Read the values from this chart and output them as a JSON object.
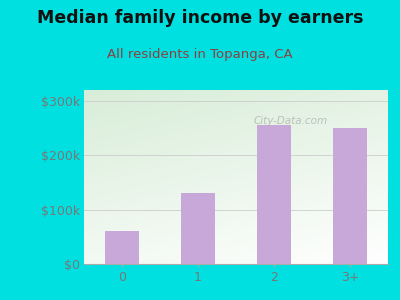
{
  "categories": [
    "0",
    "1",
    "2",
    "3+"
  ],
  "values": [
    60000,
    130000,
    255000,
    250000
  ],
  "bar_color": "#c8a8d8",
  "title": "Median family income by earners",
  "subtitle": "All residents in Topanga, CA",
  "ylabel_ticks": [
    0,
    100000,
    200000,
    300000
  ],
  "ylabel_labels": [
    "$0",
    "$100k",
    "$200k",
    "$300k"
  ],
  "ylim": [
    0,
    320000
  ],
  "outer_bg": "#00e0e0",
  "plot_bg_topleft": "#d8edd8",
  "plot_bg_topright": "#f5faf5",
  "plot_bg_bottom": "#ffffff",
  "title_fontsize": 12.5,
  "subtitle_fontsize": 9.5,
  "title_color": "#111111",
  "subtitle_color": "#8b4040",
  "tick_label_color": "#777777",
  "watermark": "City-Data.com",
  "bar_width": 0.45
}
